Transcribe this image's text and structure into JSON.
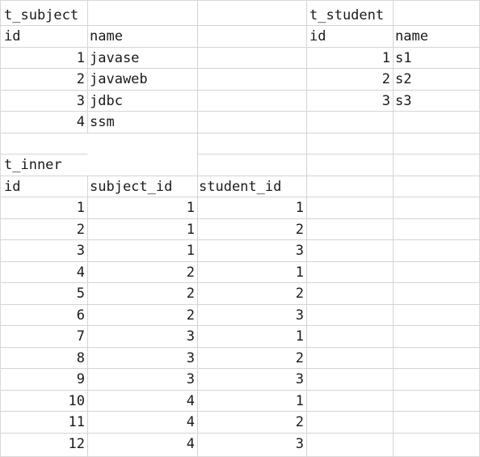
{
  "sheet": {
    "t_subject": {
      "title": "t_subject",
      "headers": [
        "id",
        "name"
      ],
      "rows": [
        [
          "1",
          "javase"
        ],
        [
          "2",
          "javaweb"
        ],
        [
          "3",
          "jdbc"
        ],
        [
          "4",
          "ssm"
        ]
      ]
    },
    "t_student": {
      "title": "t_student",
      "headers": [
        "id",
        "name"
      ],
      "rows": [
        [
          "1",
          "s1"
        ],
        [
          "2",
          "s2"
        ],
        [
          "3",
          "s3"
        ]
      ]
    },
    "t_inner": {
      "title": "t_inner",
      "headers": [
        "id",
        "subject_id",
        "student_id"
      ],
      "rows": [
        [
          "1",
          "1",
          "1"
        ],
        [
          "2",
          "1",
          "2"
        ],
        [
          "3",
          "1",
          "3"
        ],
        [
          "4",
          "2",
          "1"
        ],
        [
          "5",
          "2",
          "2"
        ],
        [
          "6",
          "2",
          "3"
        ],
        [
          "7",
          "3",
          "1"
        ],
        [
          "8",
          "3",
          "2"
        ],
        [
          "9",
          "3",
          "3"
        ],
        [
          "10",
          "4",
          "1"
        ],
        [
          "11",
          "4",
          "2"
        ],
        [
          "12",
          "4",
          "3"
        ]
      ]
    }
  }
}
